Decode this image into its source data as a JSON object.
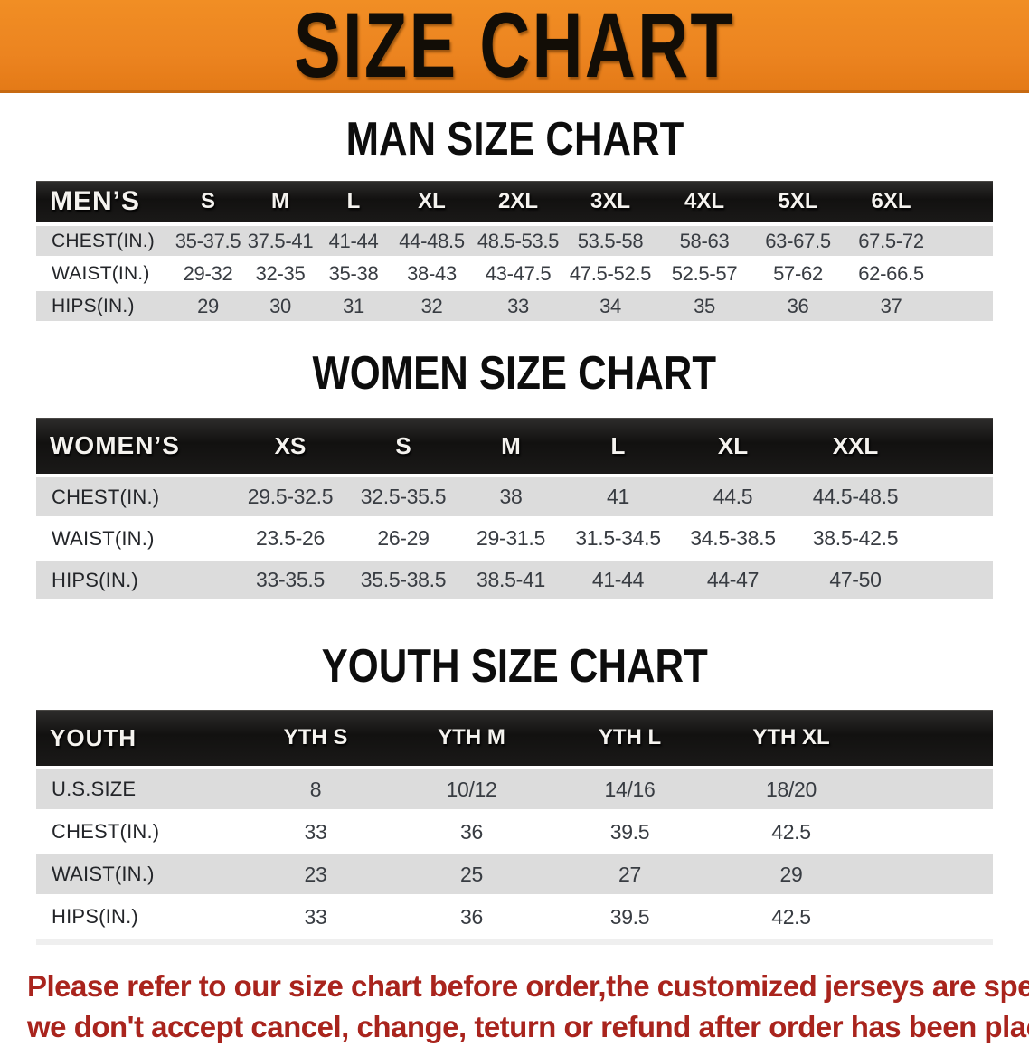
{
  "banner": {
    "title": "SIZE CHART"
  },
  "sections": {
    "man": {
      "title": "MAN SIZE CHART"
    },
    "women": {
      "title": "WOMEN SIZE CHART"
    },
    "youth": {
      "title": "YOUTH SIZE CHART"
    }
  },
  "tables": {
    "men": {
      "label": "MEN’S",
      "columns": [
        "S",
        "M",
        "L",
        "XL",
        "2XL",
        "3XL",
        "4XL",
        "5XL",
        "6XL"
      ],
      "rows": [
        {
          "label": "CHEST(IN.)",
          "values": [
            "35-37.5",
            "37.5-41",
            "41-44",
            "44-48.5",
            "48.5-53.5",
            "53.5-58",
            "58-63",
            "63-67.5",
            "67.5-72"
          ]
        },
        {
          "label": "WAIST(IN.)",
          "values": [
            "29-32",
            "32-35",
            "35-38",
            "38-43",
            "43-47.5",
            "47.5-52.5",
            "52.5-57",
            "57-62",
            "62-66.5"
          ]
        },
        {
          "label": "HIPS(IN.)",
          "values": [
            "29",
            "30",
            "31",
            "32",
            "33",
            "34",
            "35",
            "36",
            "37"
          ]
        }
      ]
    },
    "women": {
      "label": "WOMEN’S",
      "columns": [
        "XS",
        "S",
        "M",
        "L",
        "XL",
        "XXL"
      ],
      "rows": [
        {
          "label": "CHEST(IN.)",
          "values": [
            "29.5-32.5",
            "32.5-35.5",
            "38",
            "41",
            "44.5",
            "44.5-48.5"
          ]
        },
        {
          "label": "WAIST(IN.)",
          "values": [
            "23.5-26",
            "26-29",
            "29-31.5",
            "31.5-34.5",
            "34.5-38.5",
            "38.5-42.5"
          ]
        },
        {
          "label": "HIPS(IN.)",
          "values": [
            "33-35.5",
            "35.5-38.5",
            "38.5-41",
            "41-44",
            "44-47",
            "47-50"
          ]
        }
      ]
    },
    "youth": {
      "label": "YOUTH",
      "columns": [
        "YTH S",
        "YTH M",
        "YTH L",
        "YTH XL"
      ],
      "rows": [
        {
          "label": "U.S.SIZE",
          "values": [
            "8",
            "10/12",
            "14/16",
            "18/20"
          ]
        },
        {
          "label": "CHEST(IN.)",
          "values": [
            "33",
            "36",
            "39.5",
            "42.5"
          ]
        },
        {
          "label": "WAIST(IN.)",
          "values": [
            "23",
            "25",
            "27",
            "29"
          ]
        },
        {
          "label": "HIPS(IN.)",
          "values": [
            "33",
            "36",
            "39.5",
            "42.5"
          ]
        }
      ]
    }
  },
  "footer": {
    "line1": "Please refer to our size chart before order,the customized jerseys are special products,",
    "line2": "we don't accept cancel, change, teturn or refund after order has been placed!"
  },
  "colors": {
    "banner_orange": "#EC8420",
    "header_black": "#151413",
    "row_gray": "#DCDCDC",
    "note_red": "#A9241D"
  }
}
